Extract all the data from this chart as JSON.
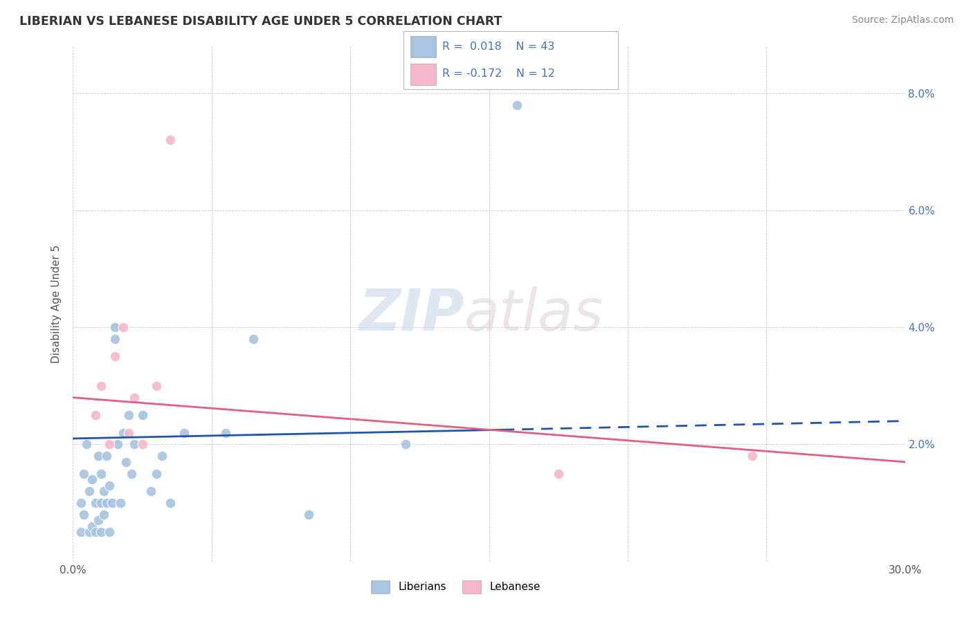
{
  "title": "LIBERIAN VS LEBANESE DISABILITY AGE UNDER 5 CORRELATION CHART",
  "source": "Source: ZipAtlas.com",
  "ylabel": "Disability Age Under 5",
  "xlim": [
    0.0,
    0.3
  ],
  "ylim": [
    0.0,
    0.088
  ],
  "liberian_R": 0.018,
  "liberian_N": 43,
  "lebanese_R": -0.172,
  "lebanese_N": 12,
  "liberian_color": "#a8c4e0",
  "lebanese_color": "#f4b8c8",
  "liberian_line_color": "#2255aa",
  "lebanese_line_color": "#e06080",
  "watermark_zip": "ZIP",
  "watermark_atlas": "atlas",
  "liberian_x": [
    0.003,
    0.003,
    0.004,
    0.004,
    0.005,
    0.006,
    0.006,
    0.007,
    0.007,
    0.008,
    0.008,
    0.009,
    0.009,
    0.01,
    0.01,
    0.01,
    0.011,
    0.011,
    0.012,
    0.012,
    0.013,
    0.013,
    0.014,
    0.015,
    0.015,
    0.016,
    0.017,
    0.018,
    0.019,
    0.02,
    0.021,
    0.022,
    0.025,
    0.028,
    0.03,
    0.032,
    0.035,
    0.04,
    0.055,
    0.065,
    0.085,
    0.12,
    0.16
  ],
  "liberian_y": [
    0.01,
    0.005,
    0.008,
    0.015,
    0.02,
    0.005,
    0.012,
    0.006,
    0.014,
    0.005,
    0.01,
    0.007,
    0.018,
    0.005,
    0.01,
    0.015,
    0.008,
    0.012,
    0.01,
    0.018,
    0.005,
    0.013,
    0.01,
    0.038,
    0.04,
    0.02,
    0.01,
    0.022,
    0.017,
    0.025,
    0.015,
    0.02,
    0.025,
    0.012,
    0.015,
    0.018,
    0.01,
    0.022,
    0.022,
    0.038,
    0.008,
    0.02,
    0.078
  ],
  "lebanese_x": [
    0.008,
    0.01,
    0.013,
    0.015,
    0.018,
    0.02,
    0.022,
    0.025,
    0.03,
    0.035,
    0.175,
    0.245
  ],
  "lebanese_y": [
    0.025,
    0.03,
    0.02,
    0.035,
    0.04,
    0.022,
    0.028,
    0.02,
    0.03,
    0.072,
    0.015,
    0.018
  ],
  "liberian_line_x": [
    0.0,
    0.3
  ],
  "liberian_line_y_start": 0.021,
  "liberian_line_y_end": 0.024,
  "lebanese_line_x": [
    0.0,
    0.3
  ],
  "lebanese_line_y_start": 0.028,
  "lebanese_line_y_end": 0.017
}
